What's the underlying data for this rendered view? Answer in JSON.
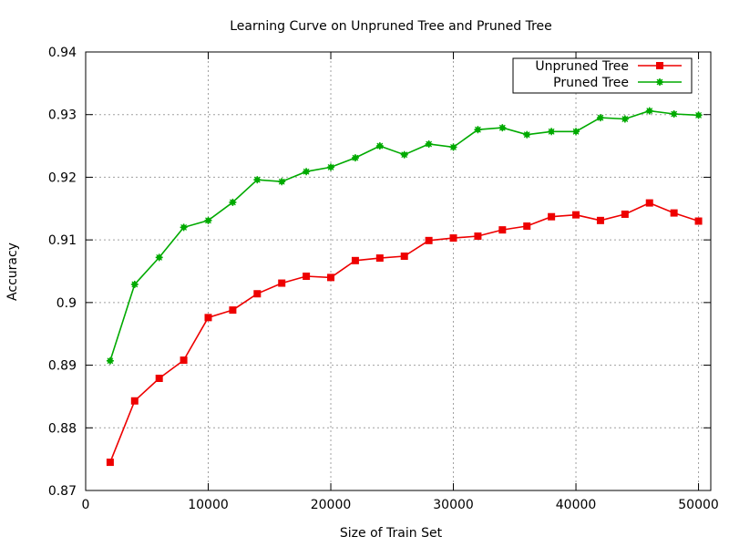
{
  "chart_data": {
    "type": "line",
    "title": "Learning Curve on Unpruned Tree and Pruned Tree",
    "xlabel": "Size of Train Set",
    "ylabel": "Accuracy",
    "xlim": [
      0,
      51000
    ],
    "ylim": [
      0.87,
      0.94
    ],
    "xticks": [
      0,
      10000,
      20000,
      30000,
      40000,
      50000
    ],
    "xtick_labels": [
      "0",
      "10000",
      "20000",
      "30000",
      "40000",
      "50000"
    ],
    "yticks": [
      0.87,
      0.88,
      0.89,
      0.9,
      0.91,
      0.92,
      0.93,
      0.94
    ],
    "ytick_labels": [
      "0.87",
      "0.88",
      "0.89",
      "0.9",
      "0.91",
      "0.92",
      "0.93",
      "0.94"
    ],
    "grid": true,
    "legend_position": "top-right",
    "x": [
      2000,
      4000,
      6000,
      8000,
      10000,
      12000,
      14000,
      16000,
      18000,
      20000,
      22000,
      24000,
      26000,
      28000,
      30000,
      32000,
      34000,
      36000,
      38000,
      40000,
      42000,
      44000,
      46000,
      48000,
      50000
    ],
    "series": [
      {
        "name": "Unpruned Tree",
        "color": "#ee0000",
        "marker": "square",
        "values": [
          0.8745,
          0.8843,
          0.8879,
          0.8908,
          0.8976,
          0.8988,
          0.9014,
          0.9031,
          0.9042,
          0.904,
          0.9067,
          0.9071,
          0.9074,
          0.9099,
          0.9103,
          0.9106,
          0.9116,
          0.9122,
          0.9137,
          0.914,
          0.9131,
          0.9141,
          0.9159,
          0.9143,
          0.913
        ]
      },
      {
        "name": "Pruned Tree",
        "color": "#00aa00",
        "marker": "star",
        "values": [
          0.8907,
          0.9029,
          0.9072,
          0.912,
          0.9131,
          0.916,
          0.9196,
          0.9193,
          0.9209,
          0.9216,
          0.9231,
          0.925,
          0.9236,
          0.9253,
          0.9248,
          0.9276,
          0.9279,
          0.9268,
          0.9273,
          0.9273,
          0.9295,
          0.9293,
          0.9306,
          0.9301,
          0.9299
        ]
      }
    ]
  }
}
